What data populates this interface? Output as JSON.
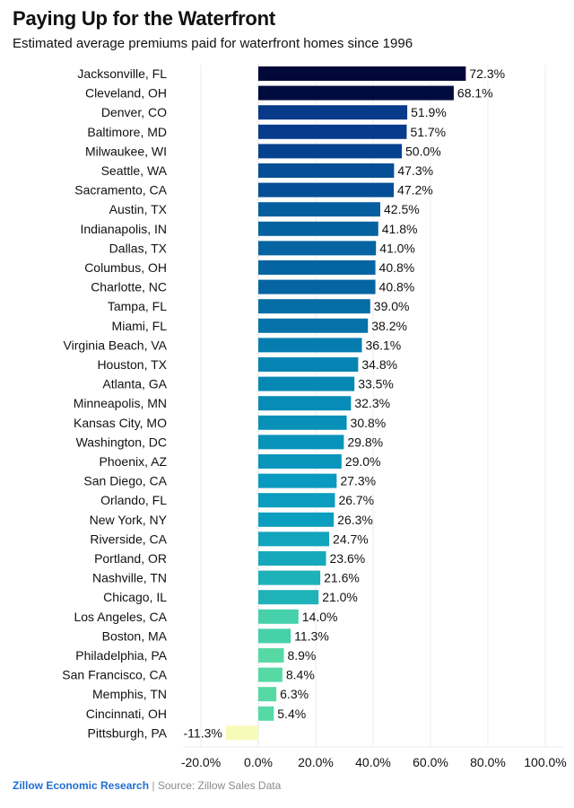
{
  "chart_data": {
    "type": "bar",
    "orientation": "horizontal",
    "title": "Paying Up for the Waterfront",
    "subtitle": "Estimated average premiums paid for waterfront homes since 1996",
    "xlabel": "",
    "ylabel": "",
    "xlim": [
      -20,
      100
    ],
    "x_ticks": [
      -20,
      0,
      20,
      40,
      60,
      80,
      100
    ],
    "x_tick_labels": [
      "-20.0%",
      "0.0%",
      "20.0%",
      "40.0%",
      "60.0%",
      "80.0%",
      "100.0%"
    ],
    "grid": "vertical",
    "legend": "none",
    "categories": [
      "Jacksonville, FL",
      "Cleveland, OH",
      "Denver, CO",
      "Baltimore, MD",
      "Milwaukee, WI",
      "Seattle, WA",
      "Sacramento, CA",
      "Austin, TX",
      "Indianapolis, IN",
      "Dallas, TX",
      "Columbus, OH",
      "Charlotte, NC",
      "Tampa, FL",
      "Miami, FL",
      "Virginia Beach, VA",
      "Houston, TX",
      "Atlanta, GA",
      "Minneapolis, MN",
      "Kansas City, MO",
      "Washington, DC",
      "Phoenix, AZ",
      "San Diego, CA",
      "Orlando, FL",
      "New York, NY",
      "Riverside, CA",
      "Portland, OR",
      "Nashville, TN",
      "Chicago, IL",
      "Los Angeles, CA",
      "Boston, MA",
      "Philadelphia, PA",
      "San Francisco, CA",
      "Memphis, TN",
      "Cincinnati, OH",
      "Pittsburgh, PA"
    ],
    "values": [
      72.3,
      68.1,
      51.9,
      51.7,
      50.0,
      47.3,
      47.2,
      42.5,
      41.8,
      41.0,
      40.8,
      40.8,
      39.0,
      38.2,
      36.1,
      34.8,
      33.5,
      32.3,
      30.8,
      29.8,
      29.0,
      27.3,
      26.7,
      26.3,
      24.7,
      23.6,
      21.6,
      21.0,
      14.0,
      11.3,
      8.9,
      8.4,
      6.3,
      5.4,
      -11.3
    ],
    "value_labels": [
      "72.3%",
      "68.1%",
      "51.9%",
      "51.7%",
      "50.0%",
      "47.3%",
      "47.2%",
      "42.5%",
      "41.8%",
      "41.0%",
      "40.8%",
      "40.8%",
      "39.0%",
      "38.2%",
      "36.1%",
      "34.8%",
      "33.5%",
      "32.3%",
      "30.8%",
      "29.8%",
      "29.0%",
      "27.3%",
      "26.7%",
      "26.3%",
      "24.7%",
      "23.6%",
      "21.6%",
      "21.0%",
      "14.0%",
      "11.3%",
      "8.9%",
      "8.4%",
      "6.3%",
      "5.4%",
      "-11.3%"
    ],
    "color_scale": [
      "#f7fbb8",
      "#5ad8a6",
      "#1fb3b9",
      "#0a9bbf",
      "#0374a8",
      "#083d8c",
      "#020838"
    ]
  },
  "footer": {
    "brand": "Zillow Economic Research",
    "separator": "|",
    "source": "Source: Zillow Sales Data"
  },
  "colors": {
    "brand": "#1f6fd1",
    "negative_bar": "#f7fbb8"
  }
}
